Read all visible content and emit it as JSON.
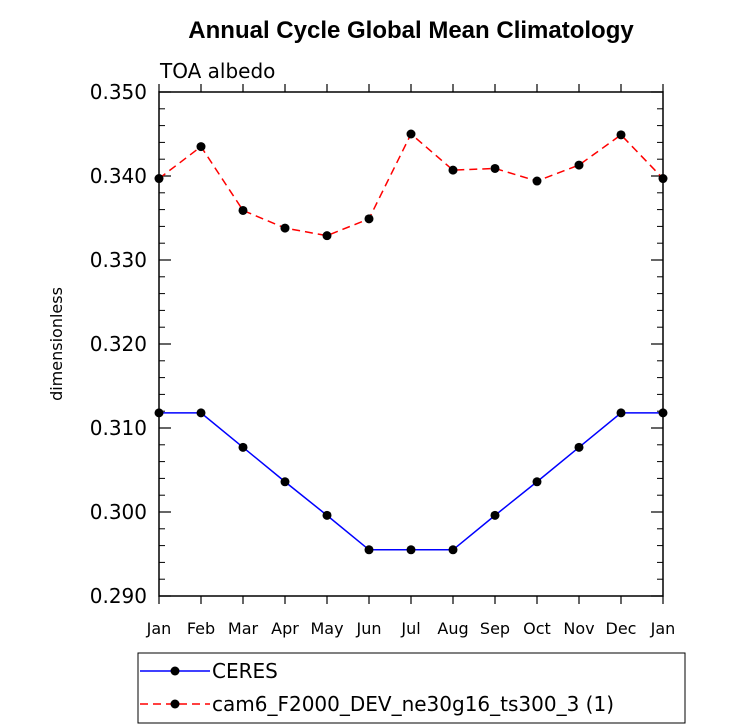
{
  "chart_data": {
    "type": "line",
    "title": "Annual Cycle Global Mean Climatology",
    "subtitle": "TOA albedo",
    "xlabel": "",
    "ylabel": "dimensionless",
    "ylim": [
      0.29,
      0.35
    ],
    "yticks": [
      "0.290",
      "0.300",
      "0.310",
      "0.320",
      "0.330",
      "0.340",
      "0.350"
    ],
    "categories": [
      "Jan",
      "Feb",
      "Mar",
      "Apr",
      "May",
      "Jun",
      "Jul",
      "Aug",
      "Sep",
      "Oct",
      "Nov",
      "Dec",
      "Jan"
    ],
    "series": [
      {
        "name": "CERES",
        "color": "#0000ff",
        "dash": "solid",
        "values": [
          0.3118,
          0.3118,
          0.3077,
          0.3036,
          0.2996,
          0.2955,
          0.2955,
          0.2955,
          0.2996,
          0.3036,
          0.3077,
          0.3118,
          0.3118
        ]
      },
      {
        "name": "cam6_F2000_DEV_ne30g16_ts300_3 (1)",
        "color": "#ff0000",
        "dash": "dashed",
        "values": [
          0.3397,
          0.3435,
          0.3359,
          0.3338,
          0.3329,
          0.3349,
          0.345,
          0.3407,
          0.3409,
          0.3394,
          0.3413,
          0.3449,
          0.3397
        ]
      }
    ],
    "grid": false,
    "legend_position": "bottom"
  }
}
